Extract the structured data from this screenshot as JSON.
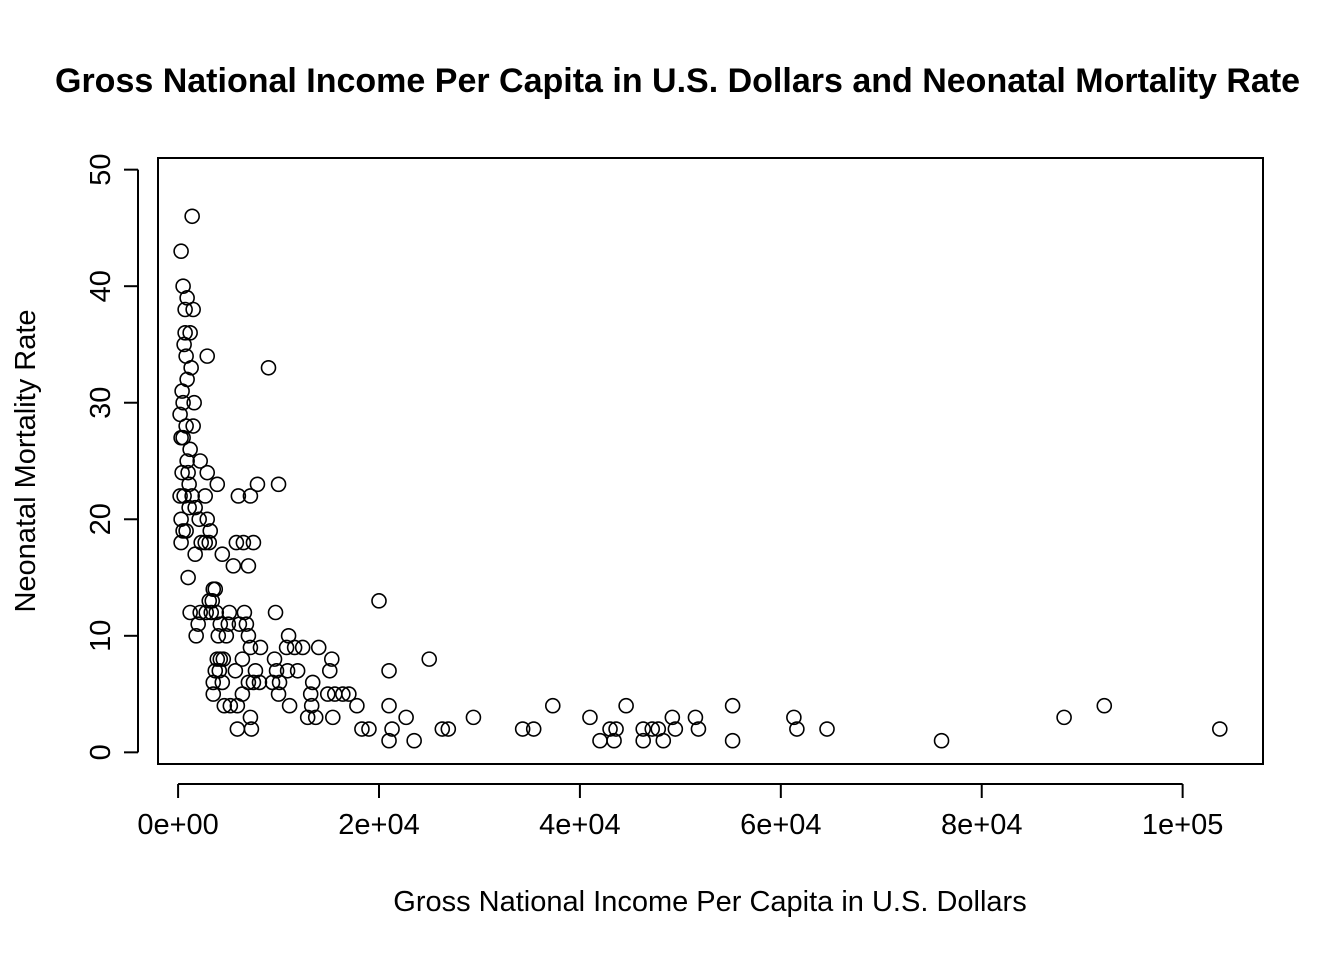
{
  "chart_data": {
    "type": "scatter",
    "title": "Gross National Income Per Capita in U.S. Dollars and Neonatal Mortality Rate",
    "xlabel": "Gross National Income Per Capita in U.S. Dollars",
    "ylabel": "Neonatal Mortality Rate",
    "xlim": [
      -2000,
      108000
    ],
    "ylim": [
      -1,
      51
    ],
    "xticks": [
      0,
      20000,
      40000,
      60000,
      80000,
      100000
    ],
    "xtick_labels": [
      "0e+00",
      "2e+04",
      "4e+04",
      "6e+04",
      "8e+04",
      "1e+05"
    ],
    "yticks": [
      0,
      10,
      20,
      30,
      40,
      50
    ],
    "ytick_labels": [
      "0",
      "10",
      "20",
      "30",
      "40",
      "50"
    ],
    "grid": false,
    "legend": "none",
    "points": [
      [
        300,
        43
      ],
      [
        500,
        40
      ],
      [
        1400,
        46
      ],
      [
        900,
        39
      ],
      [
        700,
        38
      ],
      [
        1500,
        38
      ],
      [
        700,
        36
      ],
      [
        1200,
        36
      ],
      [
        800,
        34
      ],
      [
        600,
        35
      ],
      [
        2900,
        34
      ],
      [
        9000,
        33
      ],
      [
        1300,
        33
      ],
      [
        900,
        32
      ],
      [
        400,
        31
      ],
      [
        500,
        30
      ],
      [
        1600,
        30
      ],
      [
        200,
        29
      ],
      [
        800,
        28
      ],
      [
        1500,
        28
      ],
      [
        300,
        27
      ],
      [
        500,
        27
      ],
      [
        1200,
        26
      ],
      [
        900,
        25
      ],
      [
        2200,
        25
      ],
      [
        400,
        24
      ],
      [
        1000,
        24
      ],
      [
        2900,
        24
      ],
      [
        1100,
        23
      ],
      [
        3900,
        23
      ],
      [
        7900,
        23
      ],
      [
        10000,
        23
      ],
      [
        200,
        22
      ],
      [
        600,
        22
      ],
      [
        1400,
        22
      ],
      [
        2700,
        22
      ],
      [
        6000,
        22
      ],
      [
        7200,
        22
      ],
      [
        1100,
        21
      ],
      [
        1700,
        21
      ],
      [
        300,
        20
      ],
      [
        2100,
        20
      ],
      [
        2900,
        20
      ],
      [
        500,
        19
      ],
      [
        800,
        19
      ],
      [
        3200,
        19
      ],
      [
        300,
        18
      ],
      [
        2300,
        18
      ],
      [
        2700,
        18
      ],
      [
        3100,
        18
      ],
      [
        5800,
        18
      ],
      [
        6500,
        18
      ],
      [
        7500,
        18
      ],
      [
        1700,
        17
      ],
      [
        4400,
        17
      ],
      [
        5500,
        16
      ],
      [
        7000,
        16
      ],
      [
        1000,
        15
      ],
      [
        3500,
        14
      ],
      [
        3700,
        14
      ],
      [
        3100,
        13
      ],
      [
        3400,
        13
      ],
      [
        20000,
        13
      ],
      [
        1200,
        12
      ],
      [
        2200,
        12
      ],
      [
        2800,
        12
      ],
      [
        3300,
        12
      ],
      [
        3800,
        12
      ],
      [
        5100,
        12
      ],
      [
        6600,
        12
      ],
      [
        9700,
        12
      ],
      [
        2000,
        11
      ],
      [
        4200,
        11
      ],
      [
        5000,
        11
      ],
      [
        6100,
        11
      ],
      [
        6800,
        11
      ],
      [
        1800,
        10
      ],
      [
        4000,
        10
      ],
      [
        4800,
        10
      ],
      [
        7000,
        10
      ],
      [
        11000,
        10
      ],
      [
        7200,
        9
      ],
      [
        8200,
        9
      ],
      [
        10800,
        9
      ],
      [
        11600,
        9
      ],
      [
        12400,
        9
      ],
      [
        14000,
        9
      ],
      [
        3900,
        8
      ],
      [
        4200,
        8
      ],
      [
        4500,
        8
      ],
      [
        6400,
        8
      ],
      [
        9600,
        8
      ],
      [
        15300,
        8
      ],
      [
        25000,
        8
      ],
      [
        3700,
        7
      ],
      [
        4100,
        7
      ],
      [
        5700,
        7
      ],
      [
        7700,
        7
      ],
      [
        9800,
        7
      ],
      [
        10900,
        7
      ],
      [
        11900,
        7
      ],
      [
        15100,
        7
      ],
      [
        21000,
        7
      ],
      [
        3500,
        6
      ],
      [
        4400,
        6
      ],
      [
        7000,
        6
      ],
      [
        7500,
        6
      ],
      [
        8100,
        6
      ],
      [
        9400,
        6
      ],
      [
        10100,
        6
      ],
      [
        13400,
        6
      ],
      [
        3500,
        5
      ],
      [
        6400,
        5
      ],
      [
        10000,
        5
      ],
      [
        13200,
        5
      ],
      [
        14900,
        5
      ],
      [
        15600,
        5
      ],
      [
        16400,
        5
      ],
      [
        17000,
        5
      ],
      [
        4600,
        4
      ],
      [
        5200,
        4
      ],
      [
        5900,
        4
      ],
      [
        11100,
        4
      ],
      [
        13300,
        4
      ],
      [
        17800,
        4
      ],
      [
        21000,
        4
      ],
      [
        37300,
        4
      ],
      [
        44600,
        4
      ],
      [
        55200,
        4
      ],
      [
        92200,
        4
      ],
      [
        7200,
        3
      ],
      [
        12900,
        3
      ],
      [
        13700,
        3
      ],
      [
        15400,
        3
      ],
      [
        22700,
        3
      ],
      [
        29400,
        3
      ],
      [
        41000,
        3
      ],
      [
        49200,
        3
      ],
      [
        51500,
        3
      ],
      [
        61300,
        3
      ],
      [
        88200,
        3
      ],
      [
        5900,
        2
      ],
      [
        7300,
        2
      ],
      [
        18300,
        2
      ],
      [
        19000,
        2
      ],
      [
        21300,
        2
      ],
      [
        26300,
        2
      ],
      [
        26900,
        2
      ],
      [
        34300,
        2
      ],
      [
        35400,
        2
      ],
      [
        43000,
        2
      ],
      [
        43600,
        2
      ],
      [
        46300,
        2
      ],
      [
        47200,
        2
      ],
      [
        47800,
        2
      ],
      [
        49500,
        2
      ],
      [
        51800,
        2
      ],
      [
        61600,
        2
      ],
      [
        64600,
        2
      ],
      [
        103700,
        2
      ],
      [
        21000,
        1
      ],
      [
        23500,
        1
      ],
      [
        42000,
        1
      ],
      [
        43400,
        1
      ],
      [
        46300,
        1
      ],
      [
        48300,
        1
      ],
      [
        55200,
        1
      ],
      [
        76000,
        1
      ]
    ]
  }
}
